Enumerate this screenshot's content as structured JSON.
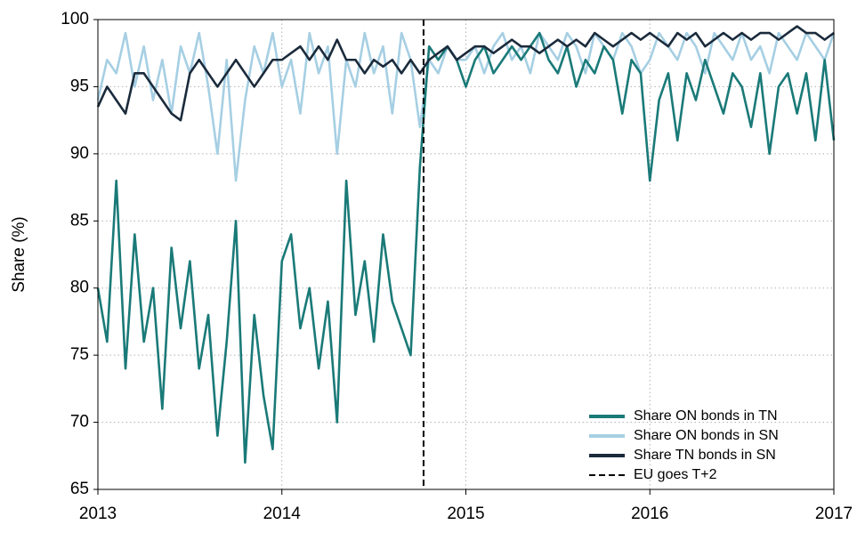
{
  "chart_data": {
    "type": "line",
    "y_label": "Share (%)",
    "x": [
      2013,
      2013.05,
      2013.1,
      2013.15,
      2013.2,
      2013.25,
      2013.3,
      2013.35,
      2013.4,
      2013.45,
      2013.5,
      2013.55,
      2013.6,
      2013.65,
      2013.7,
      2013.75,
      2013.8,
      2013.85,
      2013.9,
      2013.95,
      2014,
      2014.05,
      2014.1,
      2014.15,
      2014.2,
      2014.25,
      2014.3,
      2014.35,
      2014.4,
      2014.45,
      2014.5,
      2014.55,
      2014.6,
      2014.65,
      2014.7,
      2014.75,
      2014.8,
      2014.85,
      2014.9,
      2014.95,
      2015,
      2015.05,
      2015.1,
      2015.15,
      2015.2,
      2015.25,
      2015.3,
      2015.35,
      2015.4,
      2015.45,
      2015.5,
      2015.55,
      2015.6,
      2015.65,
      2015.7,
      2015.75,
      2015.8,
      2015.85,
      2015.9,
      2015.95,
      2016,
      2016.05,
      2016.1,
      2016.15,
      2016.2,
      2016.25,
      2016.3,
      2016.35,
      2016.4,
      2016.45,
      2016.5,
      2016.55,
      2016.6,
      2016.65,
      2016.7,
      2016.75,
      2016.8,
      2016.85,
      2016.9,
      2016.95,
      2017
    ],
    "series": [
      {
        "name": "Share ON bonds in TN",
        "color": "#1a7a78",
        "values": [
          80,
          76,
          88,
          74,
          84,
          76,
          80,
          71,
          83,
          77,
          82,
          74,
          78,
          69,
          76,
          85,
          67,
          78,
          72,
          68,
          82,
          84,
          77,
          80,
          74,
          79,
          70,
          88,
          78,
          82,
          76,
          84,
          79,
          77,
          75,
          89,
          98,
          97,
          98,
          97,
          95,
          97,
          98,
          96,
          97,
          98,
          97,
          98,
          99,
          97,
          96,
          98,
          95,
          97,
          96,
          98,
          97,
          93,
          97,
          96,
          88,
          94,
          96,
          91,
          96,
          94,
          97,
          95,
          93,
          96,
          95,
          92,
          96,
          90,
          95,
          96,
          93,
          96,
          91,
          97,
          91
        ]
      },
      {
        "name": "Share ON bonds in SN",
        "color": "#a6cfe3",
        "values": [
          94,
          97,
          96,
          99,
          95,
          98,
          94,
          97,
          93,
          98,
          96,
          99,
          95,
          90,
          97,
          88,
          94,
          98,
          96,
          99,
          95,
          97,
          93,
          99,
          96,
          98,
          90,
          97,
          95,
          99,
          96,
          98,
          93,
          99,
          97,
          92,
          97,
          96,
          98,
          97,
          97,
          98,
          96,
          98,
          99,
          97,
          98,
          96,
          99,
          98,
          97,
          99,
          98,
          96,
          99,
          98,
          97,
          99,
          98,
          96,
          97,
          99,
          98,
          97,
          99,
          98,
          96,
          99,
          98,
          97,
          99,
          97,
          98,
          96,
          99,
          98,
          97,
          99,
          98,
          97,
          99
        ]
      },
      {
        "name": "Share TN bonds in SN",
        "color": "#1b2b3c",
        "values": [
          93.5,
          95,
          94,
          93,
          96,
          96,
          95,
          94,
          93,
          92.5,
          96,
          97,
          96,
          95,
          96,
          97,
          96,
          95,
          96,
          97,
          97,
          97.5,
          98,
          97,
          98,
          97,
          98.5,
          97,
          97,
          96,
          97,
          96.5,
          97,
          96,
          97,
          96,
          97,
          97.5,
          98,
          97,
          97.5,
          98,
          98,
          97.5,
          98,
          98.5,
          98,
          98,
          97.5,
          98,
          98.5,
          98,
          98.5,
          98,
          99,
          98.5,
          98,
          98.5,
          99,
          98.5,
          99,
          98.5,
          98,
          99,
          98.5,
          99,
          98,
          98.5,
          99,
          98.5,
          99,
          98.5,
          99,
          99,
          98.5,
          99,
          99.5,
          99,
          99,
          98.5,
          99
        ]
      }
    ],
    "vline": {
      "name": "EU goes T+2",
      "x": 2014.77,
      "color": "#000000"
    },
    "xlim": [
      2013,
      2017
    ],
    "xticks": [
      2013,
      2014,
      2015,
      2016,
      2017
    ],
    "ylim": [
      65,
      100
    ],
    "yticks": [
      65,
      70,
      75,
      80,
      85,
      90,
      95,
      100
    ],
    "grid": true,
    "legend": "lower right"
  }
}
